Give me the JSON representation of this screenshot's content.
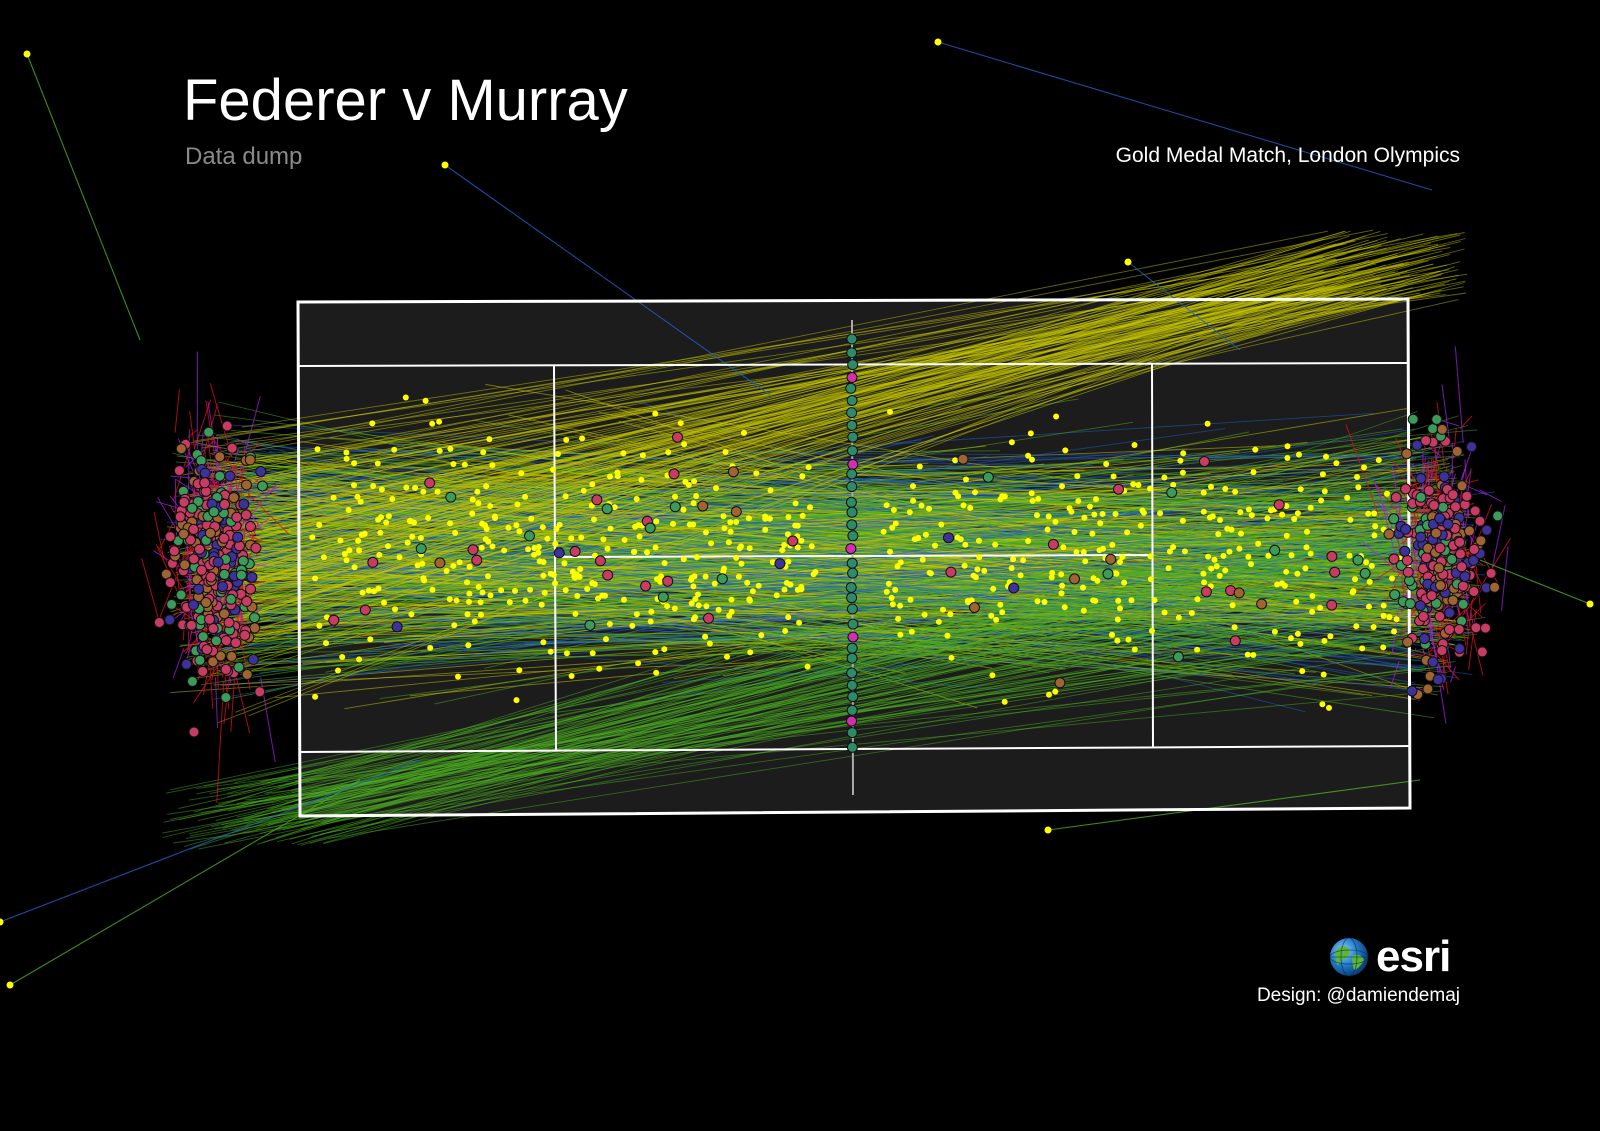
{
  "title": "Federer v Murray",
  "subtitle": "Data dump",
  "event": "Gold Medal Match, London Olympics",
  "logo": {
    "text": "esri",
    "icon": "globe-icon"
  },
  "credit": "Design: @damiendemaj",
  "colors": {
    "background": "#000000",
    "court": "#1c1c1c",
    "court_lines": "#ffffff",
    "shot_yellow": "#c8c800",
    "shot_green": "#4caf20",
    "shot_blue": "#1e5fc8",
    "shot_red": "#e0101c",
    "shot_purple": "#a020e0",
    "bounce_point": "#ffff00",
    "player_pos_pink": "#c83c64",
    "player_pos_navy": "#3c329a",
    "player_pos_green": "#3c9a5a",
    "player_pos_brown": "#a06432",
    "net_point_teal": "#2e8b6a",
    "net_point_magenta": "#d030b0"
  }
}
